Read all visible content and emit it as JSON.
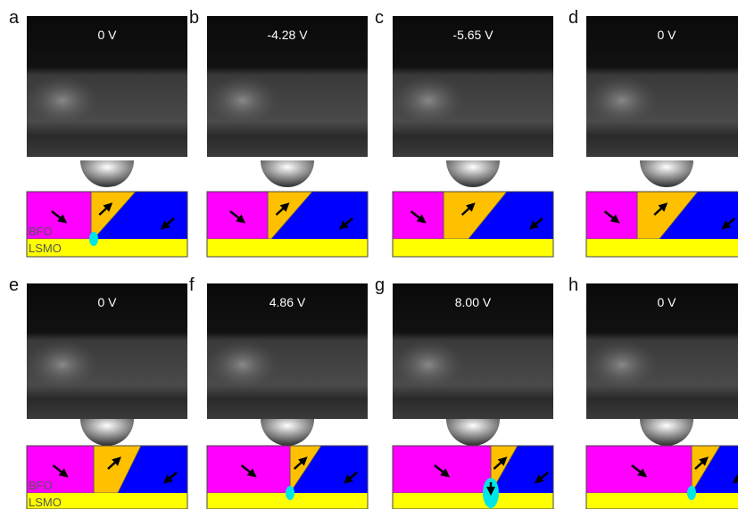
{
  "panels": [
    {
      "letter": "a",
      "voltage": "0 V"
    },
    {
      "letter": "b",
      "voltage": "-4.28 V"
    },
    {
      "letter": "c",
      "voltage": "-5.65 V"
    },
    {
      "letter": "d",
      "voltage": "0 V"
    },
    {
      "letter": "e",
      "voltage": "0 V"
    },
    {
      "letter": "f",
      "voltage": "4.86 V"
    },
    {
      "letter": "g",
      "voltage": "8.00 V"
    },
    {
      "letter": "h",
      "voltage": "0 V"
    }
  ],
  "layer_labels": {
    "top": "BFO",
    "bottom": "LSMO"
  }
}
